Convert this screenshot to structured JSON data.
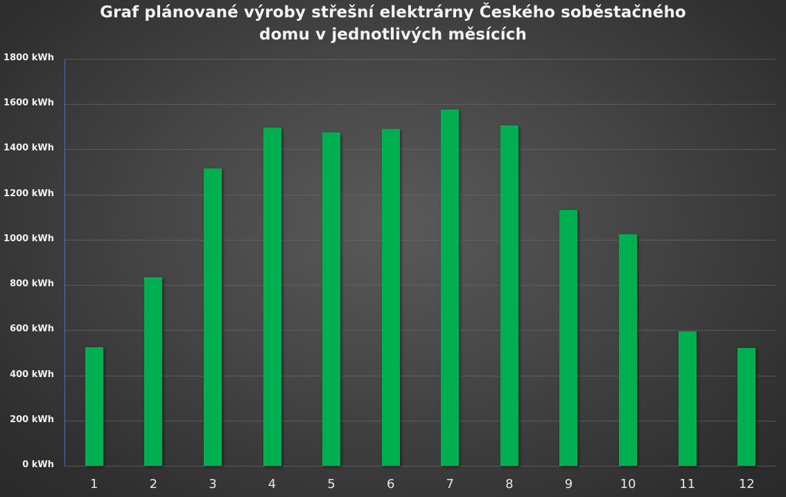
{
  "chart_data": {
    "type": "bar",
    "title": "Graf plánované výroby střešní elektrárny Českého soběstačného domu v jednotlivých měsících",
    "title_lines": [
      "Graf plánované výroby střešní elektrárny Českého soběstačného",
      "domu v jednotlivých měsících"
    ],
    "xlabel": "",
    "ylabel": "",
    "categories": [
      "1",
      "2",
      "3",
      "4",
      "5",
      "6",
      "7",
      "8",
      "9",
      "10",
      "11",
      "12"
    ],
    "values": [
      525,
      835,
      1315,
      1495,
      1475,
      1490,
      1575,
      1505,
      1130,
      1025,
      595,
      520
    ],
    "unit": "kWh",
    "ylim": [
      0,
      1800
    ],
    "yticks": [
      0,
      200,
      400,
      600,
      800,
      1000,
      1200,
      1400,
      1600,
      1800
    ],
    "ytick_labels": [
      "0 kWh",
      "200 kWh",
      "400 kWh",
      "600 kWh",
      "800 kWh",
      "1000 kWh",
      "1200 kWh",
      "1400 kWh",
      "1600 kWh",
      "1800 kWh"
    ],
    "grid": true,
    "legend": "none",
    "colors": {
      "bar": "#00b050",
      "background": "#404040",
      "text": "#f2f2f2",
      "axis": "#4472c4"
    }
  }
}
